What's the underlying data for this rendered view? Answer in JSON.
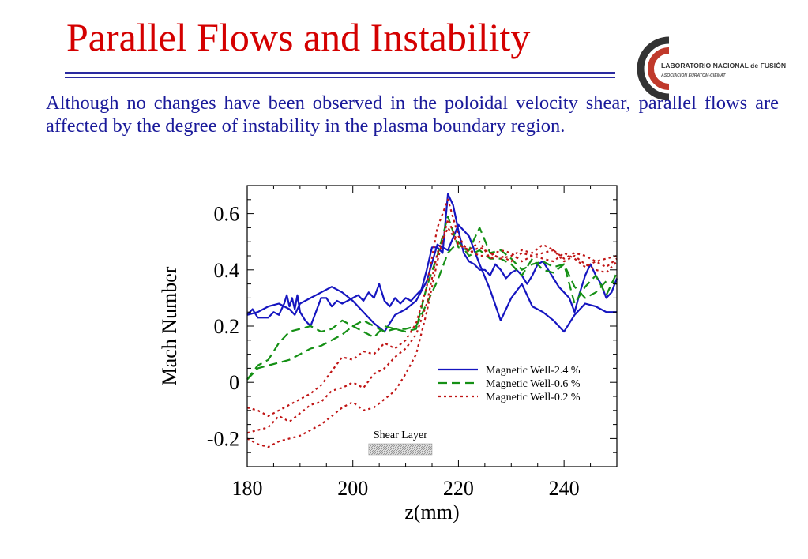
{
  "slide": {
    "title": "Parallel Flows and Instability",
    "body": "Although no changes have been observed in the poloidal velocity shear, parallel flows are affected by the degree of instability in the plasma boundary region."
  },
  "logo": {
    "name": "LABORATORIO NACIONAL de FUSIÓN",
    "subtitle": "ASOCIACIÓN EURATOM-CIEMAT",
    "color": "#c0392b"
  },
  "chart_data": {
    "type": "line",
    "xlabel": "z(mm)",
    "ylabel": "Mach Number",
    "xlim": [
      180,
      250
    ],
    "ylim": [
      -0.3,
      0.7
    ],
    "xticks": [
      180,
      200,
      220,
      240
    ],
    "xtick_labels": [
      "180",
      "200",
      "220",
      "240"
    ],
    "yticks": [
      -0.2,
      0,
      0.2,
      0.4,
      0.6
    ],
    "ytick_labels": [
      "-0.2",
      "0",
      "0.2",
      "0.4",
      "0.6"
    ],
    "grid": false,
    "legend_position": "right",
    "annotation": {
      "text": "Shear Layer",
      "x_range": [
        203,
        215
      ]
    },
    "series": [
      {
        "name": "Magnetic Well-2.4 %",
        "color": "#1515c0",
        "dash": "solid",
        "x": [
          180,
          181,
          182,
          183,
          184,
          185,
          186,
          187,
          187.5,
          188,
          188.5,
          189,
          189.5,
          190,
          191,
          192,
          193,
          194,
          195,
          196,
          197,
          198,
          199,
          200,
          201,
          202,
          203,
          204,
          205,
          206,
          207,
          208,
          209,
          210,
          211,
          212,
          213,
          214,
          215,
          216,
          217,
          218,
          219,
          220,
          221,
          222,
          223,
          224,
          225,
          226,
          227,
          228,
          229,
          230,
          231,
          232,
          233,
          234,
          235,
          236,
          237,
          238,
          239,
          240,
          241,
          242,
          243,
          244,
          245,
          246,
          247,
          248,
          249,
          250
        ],
        "y": [
          0.24,
          0.26,
          0.23,
          0.23,
          0.23,
          0.25,
          0.24,
          0.28,
          0.31,
          0.27,
          0.3,
          0.26,
          0.31,
          0.25,
          0.22,
          0.2,
          0.25,
          0.3,
          0.3,
          0.27,
          0.29,
          0.28,
          0.29,
          0.3,
          0.31,
          0.29,
          0.32,
          0.3,
          0.35,
          0.29,
          0.27,
          0.3,
          0.28,
          0.3,
          0.29,
          0.31,
          0.33,
          0.4,
          0.48,
          0.48,
          0.46,
          0.67,
          0.63,
          0.54,
          0.46,
          0.43,
          0.42,
          0.4,
          0.4,
          0.38,
          0.42,
          0.4,
          0.37,
          0.39,
          0.4,
          0.38,
          0.35,
          0.38,
          0.42,
          0.43,
          0.4,
          0.37,
          0.34,
          0.32,
          0.3,
          0.25,
          0.32,
          0.38,
          0.42,
          0.38,
          0.35,
          0.3,
          0.32,
          0.37
        ]
      },
      {
        "name": "Magnetic Well-2.4 %",
        "color": "#1515c0",
        "dash": "solid",
        "x": [
          180,
          182,
          184,
          186,
          188,
          189,
          190,
          192,
          194,
          196,
          198,
          200,
          202,
          204,
          206,
          208,
          210,
          212,
          214,
          216,
          218,
          220,
          222,
          224,
          226,
          228,
          230,
          232,
          234,
          236,
          238,
          240,
          242,
          244,
          246,
          248,
          250
        ],
        "y": [
          0.24,
          0.25,
          0.27,
          0.28,
          0.26,
          0.24,
          0.28,
          0.3,
          0.32,
          0.34,
          0.32,
          0.29,
          0.25,
          0.21,
          0.18,
          0.24,
          0.26,
          0.29,
          0.36,
          0.49,
          0.47,
          0.56,
          0.52,
          0.42,
          0.33,
          0.22,
          0.3,
          0.35,
          0.27,
          0.25,
          0.22,
          0.18,
          0.24,
          0.28,
          0.27,
          0.25,
          0.25
        ]
      },
      {
        "name": "Magnetic Well-0.6 %",
        "color": "#159015",
        "dash": "dashed",
        "x": [
          180,
          182,
          184,
          186,
          188,
          190,
          192,
          194,
          196,
          198,
          200,
          202,
          204,
          206,
          208,
          210,
          212,
          214,
          216,
          218,
          220,
          222,
          224,
          226,
          228,
          230,
          232,
          234,
          236,
          238,
          240,
          242,
          244,
          246,
          248,
          250
        ],
        "y": [
          0.01,
          0.06,
          0.08,
          0.14,
          0.18,
          0.19,
          0.2,
          0.18,
          0.19,
          0.22,
          0.2,
          0.18,
          0.16,
          0.2,
          0.19,
          0.18,
          0.19,
          0.34,
          0.45,
          0.59,
          0.48,
          0.47,
          0.55,
          0.46,
          0.47,
          0.44,
          0.4,
          0.42,
          0.43,
          0.41,
          0.42,
          0.28,
          0.34,
          0.38,
          0.31,
          0.39
        ]
      },
      {
        "name": "Magnetic Well-0.6 %",
        "color": "#159015",
        "dash": "dashed",
        "x": [
          180,
          182,
          184,
          186,
          188,
          190,
          192,
          194,
          196,
          198,
          200,
          202,
          204,
          206,
          208,
          210,
          212,
          214,
          216,
          218,
          220,
          222,
          224,
          226,
          228,
          230,
          232,
          234,
          236,
          238,
          240,
          242,
          244,
          246,
          248,
          250
        ],
        "y": [
          0.01,
          0.05,
          0.06,
          0.07,
          0.08,
          0.1,
          0.12,
          0.13,
          0.15,
          0.17,
          0.2,
          0.22,
          0.2,
          0.18,
          0.19,
          0.19,
          0.2,
          0.28,
          0.36,
          0.46,
          0.5,
          0.45,
          0.47,
          0.44,
          0.44,
          0.42,
          0.38,
          0.44,
          0.4,
          0.39,
          0.42,
          0.34,
          0.3,
          0.32,
          0.36,
          0.35
        ]
      },
      {
        "name": "Magnetic Well-0.2 %",
        "color": "#c01515",
        "dash": "dotted",
        "x": [
          180,
          182,
          184,
          186,
          188,
          190,
          192,
          194,
          196,
          198,
          200,
          202,
          204,
          206,
          208,
          210,
          212,
          214,
          216,
          218,
          220,
          222,
          224,
          226,
          228,
          230,
          232,
          234,
          236,
          238,
          240,
          242,
          244,
          246,
          248,
          250
        ],
        "y": [
          -0.09,
          -0.1,
          -0.12,
          -0.1,
          -0.08,
          -0.06,
          -0.04,
          -0.01,
          0.04,
          0.09,
          0.08,
          0.11,
          0.1,
          0.14,
          0.12,
          0.15,
          0.21,
          0.34,
          0.55,
          0.65,
          0.52,
          0.46,
          0.48,
          0.46,
          0.44,
          0.45,
          0.47,
          0.46,
          0.49,
          0.47,
          0.44,
          0.46,
          0.45,
          0.43,
          0.41,
          0.44
        ]
      },
      {
        "name": "Magnetic Well-0.2 %",
        "color": "#c01515",
        "dash": "dotted",
        "x": [
          180,
          182,
          184,
          186,
          188,
          190,
          192,
          194,
          196,
          198,
          200,
          202,
          204,
          206,
          208,
          210,
          212,
          214,
          216,
          218,
          220,
          222,
          224,
          226,
          228,
          230,
          232,
          234,
          236,
          238,
          240,
          242,
          244,
          246,
          248,
          250
        ],
        "y": [
          -0.18,
          -0.17,
          -0.16,
          -0.12,
          -0.14,
          -0.11,
          -0.08,
          -0.07,
          -0.03,
          -0.02,
          0.0,
          -0.02,
          0.03,
          0.05,
          0.09,
          0.12,
          0.17,
          0.28,
          0.46,
          0.55,
          0.49,
          0.47,
          0.45,
          0.45,
          0.47,
          0.46,
          0.43,
          0.45,
          0.44,
          0.43,
          0.46,
          0.44,
          0.41,
          0.43,
          0.44,
          0.45
        ]
      },
      {
        "name": "Magnetic Well-0.2 %",
        "color": "#c01515",
        "dash": "dotted",
        "x": [
          180,
          182,
          184,
          186,
          188,
          190,
          192,
          194,
          196,
          198,
          200,
          202,
          204,
          206,
          208,
          210,
          212,
          214,
          216,
          218,
          220,
          222,
          224,
          226,
          228,
          230,
          232,
          234,
          236,
          238,
          240,
          242,
          244,
          246,
          248,
          250
        ],
        "y": [
          -0.2,
          -0.22,
          -0.23,
          -0.21,
          -0.2,
          -0.19,
          -0.17,
          -0.15,
          -0.12,
          -0.09,
          -0.07,
          -0.1,
          -0.09,
          -0.06,
          -0.03,
          0.03,
          0.1,
          0.25,
          0.43,
          0.58,
          0.49,
          0.47,
          0.5,
          0.44,
          0.45,
          0.43,
          0.46,
          0.45,
          0.46,
          0.47,
          0.43,
          0.45,
          0.42,
          0.4,
          0.39,
          0.43
        ]
      }
    ],
    "legend": [
      {
        "label": "Magnetic Well-2.4 %",
        "color": "#1515c0",
        "dash": "solid"
      },
      {
        "label": "Magnetic Well-0.6 %",
        "color": "#159015",
        "dash": "dashed"
      },
      {
        "label": "Magnetic Well-0.2 %",
        "color": "#c01515",
        "dash": "dotted"
      }
    ]
  }
}
